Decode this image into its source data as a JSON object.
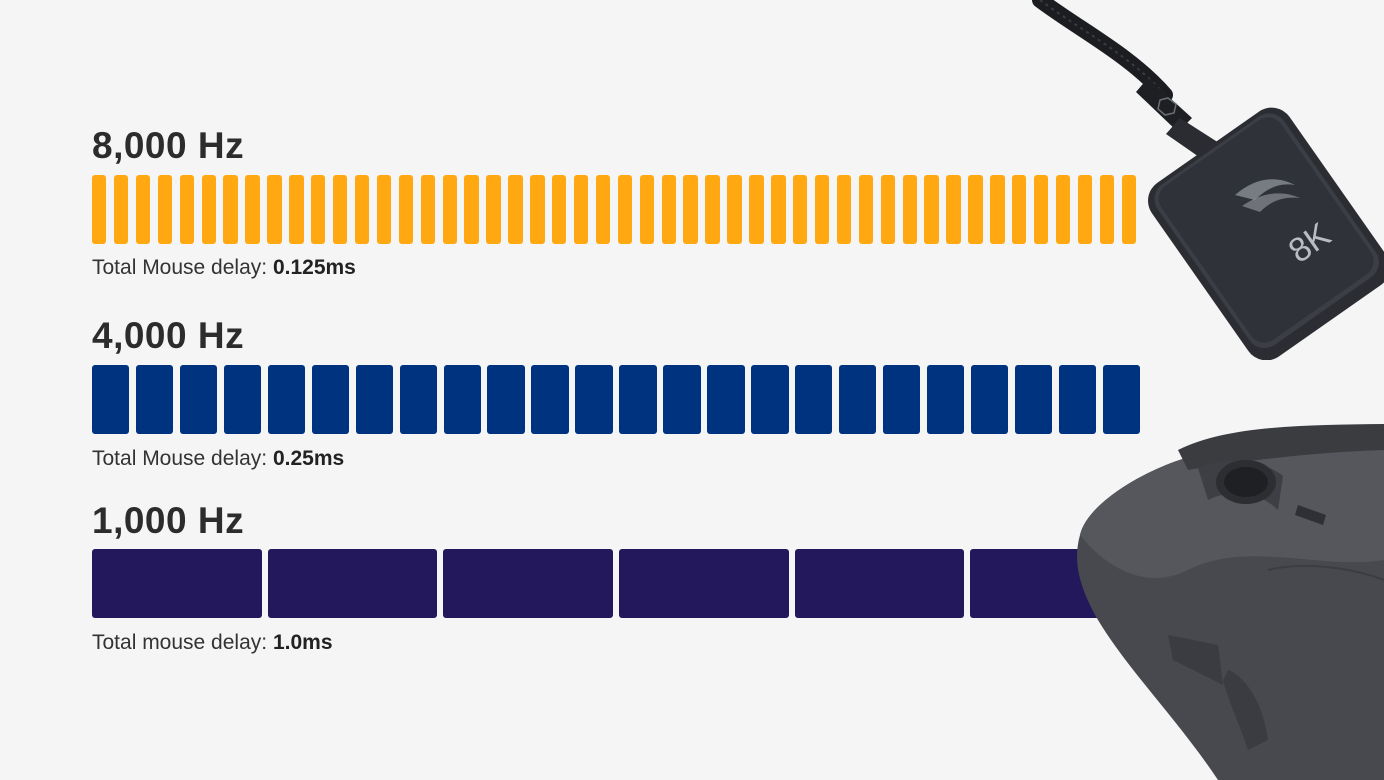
{
  "chart_data": {
    "type": "bar",
    "series": [
      {
        "name": "8,000 Hz",
        "segments": 48,
        "color": "#ffa811",
        "delay_label": "Total Mouse delay:",
        "delay_value": "0.125ms",
        "delay_ms": 0.125
      },
      {
        "name": "4,000 Hz",
        "segments": 24,
        "color": "#00337f",
        "delay_label": "Total Mouse delay:",
        "delay_value": "0.25ms",
        "delay_ms": 0.25
      },
      {
        "name": "1,000 Hz",
        "segments": 6,
        "color": "#24185c",
        "delay_label": "Total mouse delay:",
        "delay_value": "1.0ms",
        "delay_ms": 1.0
      }
    ]
  },
  "dongle": {
    "label": "8K"
  }
}
